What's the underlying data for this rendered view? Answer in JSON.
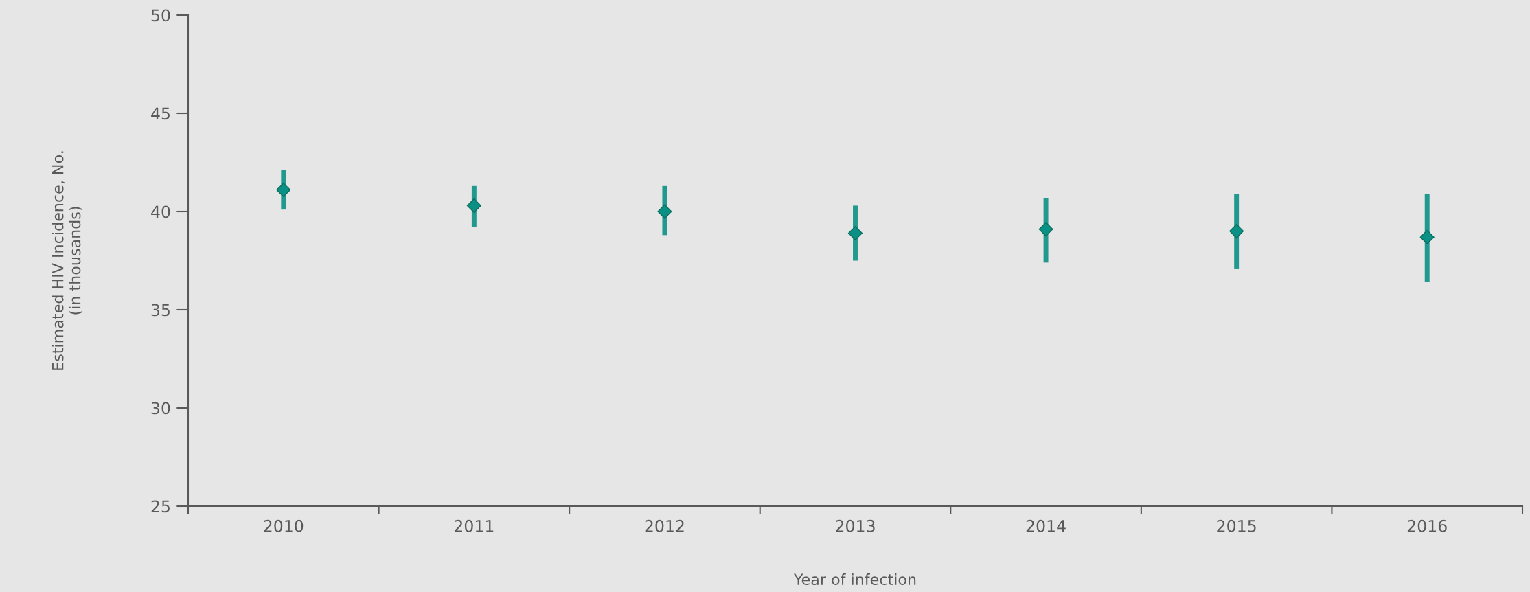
{
  "chart_data": {
    "type": "scatter",
    "xlabel": "Year of infection",
    "ylabel": "Estimated HIV Incidence, No.\n(in thousands)",
    "categories": [
      "2010",
      "2011",
      "2012",
      "2013",
      "2014",
      "2015",
      "2016"
    ],
    "series": [
      {
        "color": "#0b9085",
        "values": [
          41.1,
          40.3,
          40.0,
          38.9,
          39.1,
          39.0,
          38.7
        ],
        "errors": [
          [
            40.1,
            42.1
          ],
          [
            39.2,
            41.3
          ],
          [
            38.8,
            41.3
          ],
          [
            37.5,
            40.3
          ],
          [
            37.4,
            40.7
          ],
          [
            37.1,
            40.9
          ],
          [
            36.4,
            40.9
          ]
        ]
      }
    ],
    "ylim": [
      25,
      50
    ],
    "yticks": [
      25,
      30,
      35,
      40,
      45,
      50
    ],
    "marker": "diamond",
    "grid": false,
    "legend": false
  }
}
